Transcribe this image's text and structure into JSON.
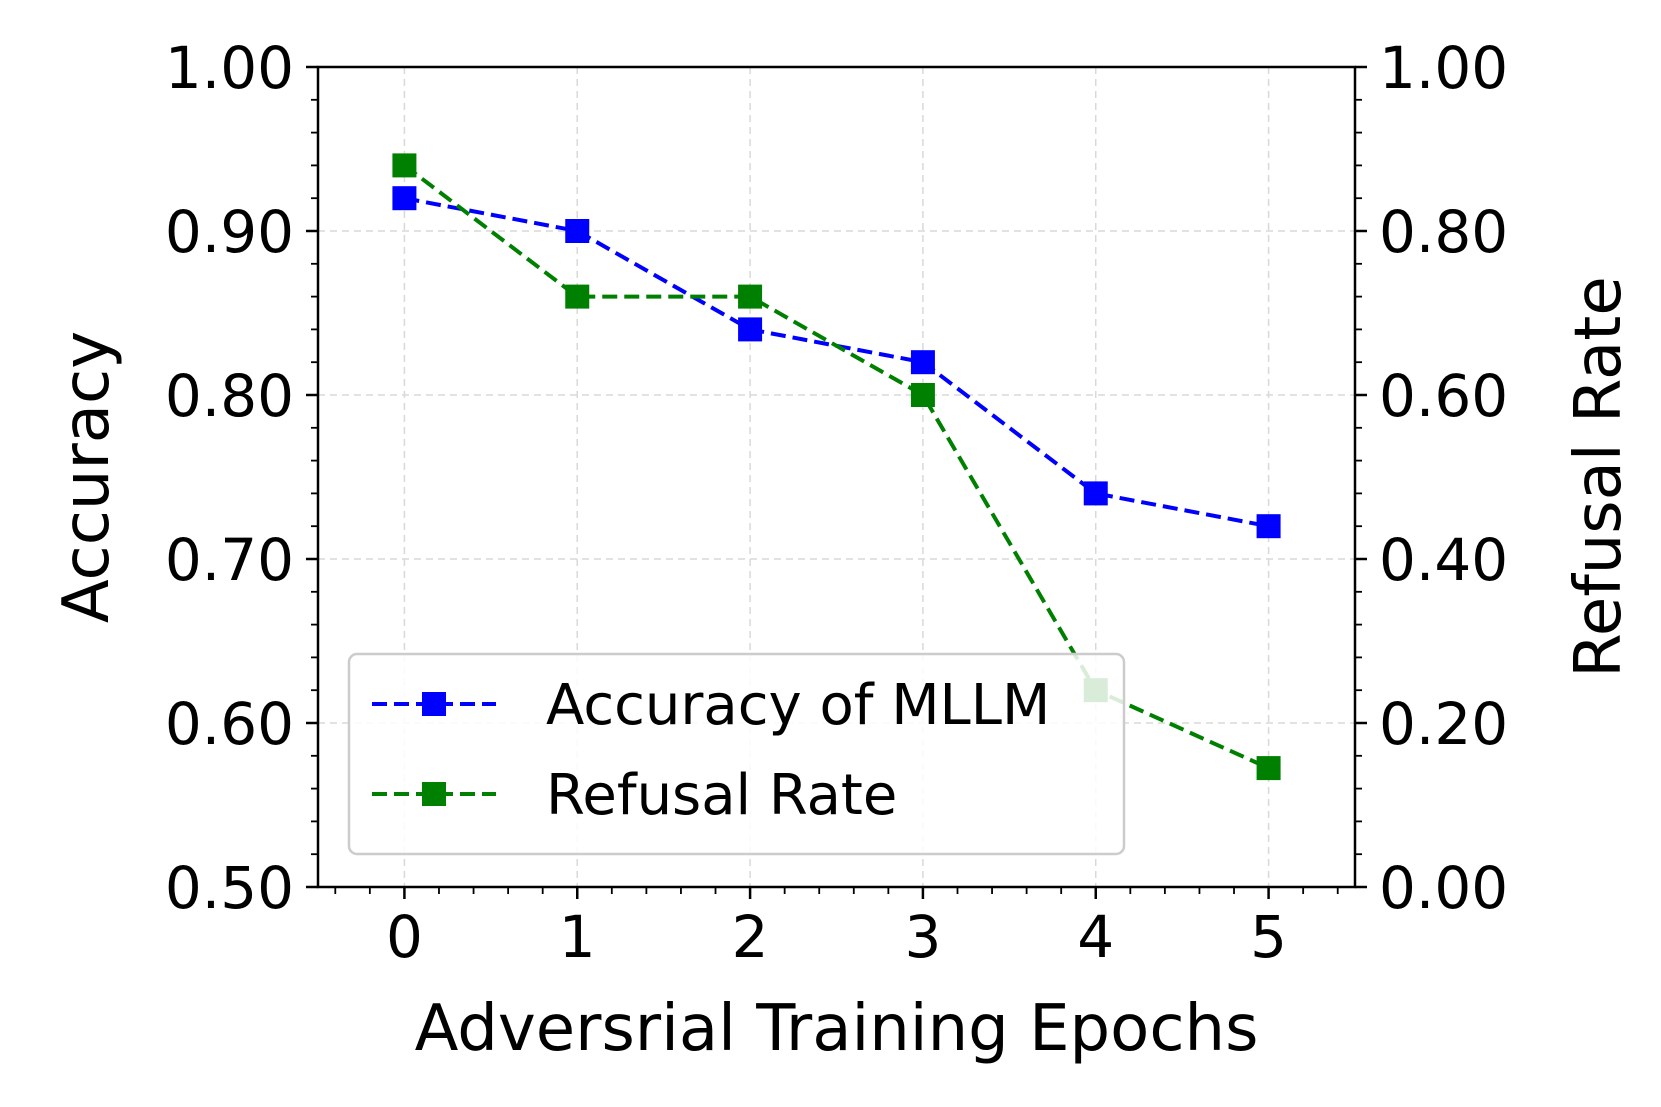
{
  "chart_data": {
    "type": "line",
    "title": "",
    "xlabel": "Adversrial Training Epochs",
    "ylabel": "Accuracy",
    "y2label": "Refusal Rate",
    "x": [
      0,
      1,
      2,
      3,
      4,
      5
    ],
    "xticks": [
      "0",
      "1",
      "2",
      "3",
      "4",
      "5"
    ],
    "xlim": [
      -0.5,
      5.5
    ],
    "ylim": [
      0.5,
      1.0
    ],
    "y2lim": [
      0.0,
      1.0
    ],
    "yticks": [
      "0.50",
      "0.60",
      "0.70",
      "0.80",
      "0.90",
      "1.00"
    ],
    "y2ticks": [
      "0.00",
      "0.20",
      "0.40",
      "0.60",
      "0.80",
      "1.00"
    ],
    "grid": true,
    "legend_position": "lower-left",
    "series": [
      {
        "name": "Accuracy of MLLM",
        "axis": "left",
        "color": "#0000ff",
        "linestyle": "dashed",
        "marker": "square",
        "values": [
          0.92,
          0.9,
          0.84,
          0.82,
          0.74,
          0.72
        ]
      },
      {
        "name": "Refusal Rate",
        "axis": "right",
        "color": "#008000",
        "linestyle": "dashed",
        "marker": "square",
        "values": [
          0.88,
          0.72,
          0.72,
          0.6,
          0.24,
          0.145
        ]
      }
    ]
  }
}
